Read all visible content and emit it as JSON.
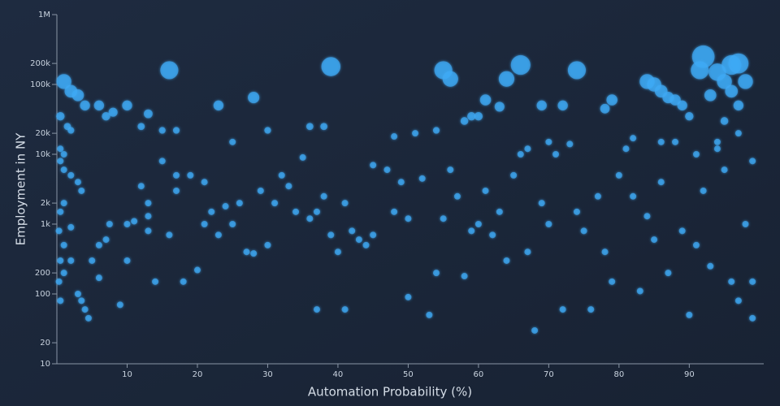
{
  "chart_data": {
    "type": "scatter",
    "x_label": "Automation Probability (%)",
    "y_label": "Employment in NY",
    "xlim": [
      0,
      100.6
    ],
    "xticks": [
      10,
      20,
      30,
      40,
      50,
      60,
      70,
      80,
      90
    ],
    "ylim": [
      10,
      1000000
    ],
    "y_scale": "log",
    "yticks": [
      10,
      20,
      100,
      200,
      {
        "value": 1000,
        "label": "1k"
      },
      {
        "value": 2000,
        "label": "2k"
      },
      {
        "value": 10000,
        "label": "10k"
      },
      {
        "value": 20000,
        "label": "20k"
      },
      {
        "value": 100000,
        "label": "100k"
      },
      {
        "value": 200000,
        "label": "200k"
      },
      {
        "value": 1000000,
        "label": "1M"
      }
    ],
    "grid": false,
    "series": [
      {
        "color": "#3fa9f5",
        "x": [
          92,
          96,
          97,
          91.5,
          95,
          98,
          94,
          84,
          85,
          86,
          87,
          88,
          89,
          93,
          96,
          97,
          74,
          66,
          64,
          55,
          56,
          39,
          16,
          28,
          23,
          61,
          63,
          69,
          72,
          78,
          79,
          90,
          95,
          58,
          59,
          60,
          54,
          51,
          48,
          38,
          36,
          30,
          25,
          17,
          15,
          13,
          12,
          10,
          8,
          7,
          6,
          4,
          3,
          1,
          2,
          0.5,
          0.5,
          1,
          0.5,
          1.5,
          2,
          1,
          2,
          3,
          3.5,
          1,
          0.5,
          0.3,
          2,
          1,
          0.5,
          0.3,
          0.5,
          1,
          2,
          3,
          3.5,
          4,
          4.5,
          5,
          6,
          6,
          7,
          7.5,
          9,
          10,
          10,
          11,
          12,
          13,
          13,
          13,
          14,
          15,
          16,
          17,
          17,
          18,
          19,
          20,
          21,
          21,
          22,
          23,
          24,
          25,
          26,
          27,
          28,
          29,
          30,
          31,
          32,
          33,
          34,
          35,
          36,
          37,
          37,
          38,
          39,
          40,
          41,
          41,
          42,
          43,
          44,
          45,
          47,
          48,
          49,
          50,
          50,
          52,
          53,
          54,
          55,
          56,
          57,
          58,
          59,
          60,
          61,
          62,
          63,
          64,
          65,
          66,
          67,
          68,
          69,
          70,
          71,
          72,
          73,
          74,
          75,
          76,
          77,
          78,
          79,
          80,
          81,
          82,
          83,
          84,
          85,
          86,
          87,
          88,
          89,
          90,
          91,
          92,
          93,
          94,
          95,
          96,
          97,
          98,
          99,
          99,
          99,
          97,
          94,
          91,
          86,
          82,
          70,
          67,
          45
        ],
        "values": [
          250000,
          190000,
          200000,
          160000,
          110000,
          110000,
          150000,
          110000,
          100000,
          80000,
          65000,
          60000,
          50000,
          70000,
          80000,
          50000,
          160000,
          190000,
          120000,
          160000,
          120000,
          180000,
          160000,
          65000,
          50000,
          60000,
          48000,
          50000,
          50000,
          45000,
          60000,
          35000,
          30000,
          30000,
          35000,
          35000,
          22000,
          20000,
          18000,
          25000,
          25000,
          22000,
          15000,
          22000,
          22000,
          38000,
          25000,
          50000,
          40000,
          35000,
          50000,
          50000,
          70000,
          110000,
          80000,
          35000,
          12000,
          10000,
          8000,
          25000,
          22000,
          6000,
          5000,
          4000,
          3000,
          2000,
          1500,
          800,
          900,
          500,
          300,
          150,
          80,
          200,
          300,
          100,
          80,
          60,
          45,
          300,
          170,
          500,
          600,
          1000,
          70,
          300,
          1000,
          1100,
          3500,
          800,
          1300,
          2000,
          150,
          8000,
          700,
          3000,
          5000,
          150,
          5000,
          220,
          4000,
          1000,
          1500,
          700,
          1800,
          1000,
          2000,
          400,
          380,
          3000,
          500,
          2000,
          5000,
          3500,
          1500,
          9000,
          1200,
          1500,
          60,
          2500,
          700,
          400,
          60,
          2000,
          800,
          600,
          500,
          700,
          6000,
          1500,
          4000,
          90,
          1200,
          4500,
          50,
          200,
          1200,
          6000,
          2500,
          180,
          800,
          1000,
          3000,
          700,
          1500,
          300,
          5000,
          10000,
          400,
          30,
          2000,
          1000,
          10000,
          60,
          14000,
          1500,
          800,
          60,
          2500,
          400,
          150,
          5000,
          12000,
          2500,
          110,
          1300,
          600,
          4000,
          200,
          15000,
          800,
          50,
          500,
          3000,
          250,
          12000,
          6000,
          150,
          80,
          1000,
          45,
          8000,
          150,
          20000,
          15000,
          10000,
          15000,
          17000,
          15000,
          12000,
          7000
        ]
      }
    ]
  }
}
